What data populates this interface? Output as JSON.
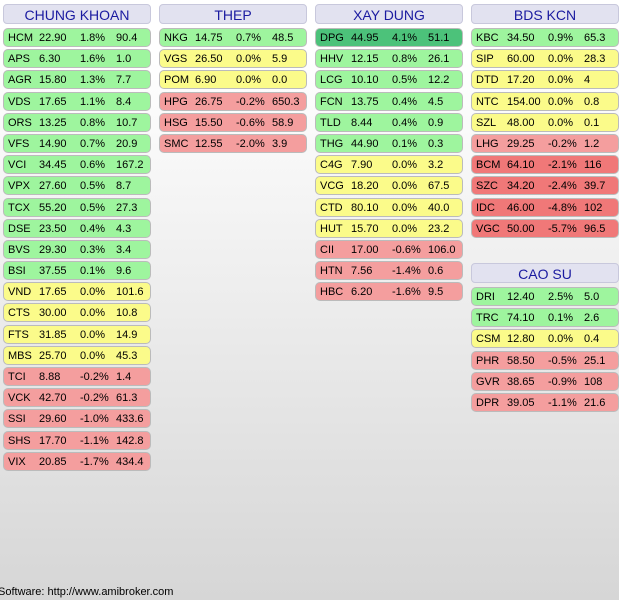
{
  "footer": "Software: http://www.amibroker.com",
  "columns": [
    {
      "title": "CHUNG KHOAN",
      "rows": [
        {
          "symbol": "HCM",
          "price": "22.90",
          "pct": "1.8%",
          "vol": "90.4",
          "trend": "up"
        },
        {
          "symbol": "APS",
          "price": "6.30",
          "pct": "1.6%",
          "vol": "1.0",
          "trend": "up"
        },
        {
          "symbol": "AGR",
          "price": "15.80",
          "pct": "1.3%",
          "vol": "7.7",
          "trend": "up"
        },
        {
          "symbol": "VDS",
          "price": "17.65",
          "pct": "1.1%",
          "vol": "8.4",
          "trend": "up"
        },
        {
          "symbol": "ORS",
          "price": "13.25",
          "pct": "0.8%",
          "vol": "10.7",
          "trend": "up"
        },
        {
          "symbol": "VFS",
          "price": "14.90",
          "pct": "0.7%",
          "vol": "20.9",
          "trend": "up"
        },
        {
          "symbol": "VCI",
          "price": "34.45",
          "pct": "0.6%",
          "vol": "167.2",
          "trend": "up"
        },
        {
          "symbol": "VPX",
          "price": "27.60",
          "pct": "0.5%",
          "vol": "8.7",
          "trend": "up"
        },
        {
          "symbol": "TCX",
          "price": "55.20",
          "pct": "0.5%",
          "vol": "27.3",
          "trend": "up"
        },
        {
          "symbol": "DSE",
          "price": "23.50",
          "pct": "0.4%",
          "vol": "4.3",
          "trend": "up"
        },
        {
          "symbol": "BVS",
          "price": "29.30",
          "pct": "0.3%",
          "vol": "3.4",
          "trend": "up"
        },
        {
          "symbol": "BSI",
          "price": "37.55",
          "pct": "0.1%",
          "vol": "9.6",
          "trend": "up"
        },
        {
          "symbol": "VND",
          "price": "17.65",
          "pct": "0.0%",
          "vol": "101.6",
          "trend": "ref"
        },
        {
          "symbol": "CTS",
          "price": "30.00",
          "pct": "0.0%",
          "vol": "10.8",
          "trend": "ref"
        },
        {
          "symbol": "FTS",
          "price": "31.85",
          "pct": "0.0%",
          "vol": "14.9",
          "trend": "ref"
        },
        {
          "symbol": "MBS",
          "price": "25.70",
          "pct": "0.0%",
          "vol": "45.3",
          "trend": "ref"
        },
        {
          "symbol": "TCI",
          "price": "8.88",
          "pct": "-0.2%",
          "vol": "1.4",
          "trend": "down"
        },
        {
          "symbol": "VCK",
          "price": "42.70",
          "pct": "-0.2%",
          "vol": "61.3",
          "trend": "down"
        },
        {
          "symbol": "SSI",
          "price": "29.60",
          "pct": "-1.0%",
          "vol": "433.6",
          "trend": "down"
        },
        {
          "symbol": "SHS",
          "price": "17.70",
          "pct": "-1.1%",
          "vol": "142.8",
          "trend": "down"
        },
        {
          "symbol": "VIX",
          "price": "20.85",
          "pct": "-1.7%",
          "vol": "434.4",
          "trend": "down"
        }
      ]
    },
    {
      "title": "THEP",
      "rows": [
        {
          "symbol": "NKG",
          "price": "14.75",
          "pct": "0.7%",
          "vol": "48.5",
          "trend": "up"
        },
        {
          "symbol": "VGS",
          "price": "26.50",
          "pct": "0.0%",
          "vol": "5.9",
          "trend": "ref"
        },
        {
          "symbol": "POM",
          "price": "6.90",
          "pct": "0.0%",
          "vol": "0.0",
          "trend": "ref"
        },
        {
          "symbol": "HPG",
          "price": "26.75",
          "pct": "-0.2%",
          "vol": "650.3",
          "trend": "down"
        },
        {
          "symbol": "HSG",
          "price": "15.50",
          "pct": "-0.6%",
          "vol": "58.9",
          "trend": "down"
        },
        {
          "symbol": "SMC",
          "price": "12.55",
          "pct": "-2.0%",
          "vol": "3.9",
          "trend": "down"
        }
      ]
    },
    {
      "title": "XAY DUNG",
      "rows": [
        {
          "symbol": "DPG",
          "price": "44.95",
          "pct": "4.1%",
          "vol": "51.1",
          "trend": "up-strong"
        },
        {
          "symbol": "HHV",
          "price": "12.15",
          "pct": "0.8%",
          "vol": "26.1",
          "trend": "up"
        },
        {
          "symbol": "LCG",
          "price": "10.10",
          "pct": "0.5%",
          "vol": "12.2",
          "trend": "up"
        },
        {
          "symbol": "FCN",
          "price": "13.75",
          "pct": "0.4%",
          "vol": "4.5",
          "trend": "up"
        },
        {
          "symbol": "TLD",
          "price": "8.44",
          "pct": "0.4%",
          "vol": "0.9",
          "trend": "up"
        },
        {
          "symbol": "THG",
          "price": "44.90",
          "pct": "0.1%",
          "vol": "0.3",
          "trend": "up"
        },
        {
          "symbol": "C4G",
          "price": "7.90",
          "pct": "0.0%",
          "vol": "3.2",
          "trend": "ref"
        },
        {
          "symbol": "VCG",
          "price": "18.20",
          "pct": "0.0%",
          "vol": "67.5",
          "trend": "ref"
        },
        {
          "symbol": "CTD",
          "price": "80.10",
          "pct": "0.0%",
          "vol": "40.0",
          "trend": "ref"
        },
        {
          "symbol": "HUT",
          "price": "15.70",
          "pct": "0.0%",
          "vol": "23.2",
          "trend": "ref"
        },
        {
          "symbol": "CII",
          "price": "17.00",
          "pct": "-0.6%",
          "vol": "106.0",
          "trend": "down"
        },
        {
          "symbol": "HTN",
          "price": "7.56",
          "pct": "-1.4%",
          "vol": "0.6",
          "trend": "down"
        },
        {
          "symbol": "HBC",
          "price": "6.20",
          "pct": "-1.6%",
          "vol": "9.5",
          "trend": "down"
        }
      ]
    },
    {
      "title": "BDS KCN",
      "rows": [
        {
          "symbol": "KBC",
          "price": "34.50",
          "pct": "0.9%",
          "vol": "65.3",
          "trend": "up"
        },
        {
          "symbol": "SIP",
          "price": "60.00",
          "pct": "0.0%",
          "vol": "28.3",
          "trend": "ref"
        },
        {
          "symbol": "DTD",
          "price": "17.20",
          "pct": "0.0%",
          "vol": "4",
          "trend": "ref"
        },
        {
          "symbol": "NTC",
          "price": "154.00",
          "pct": "0.0%",
          "vol": "0.8",
          "trend": "ref"
        },
        {
          "symbol": "SZL",
          "price": "48.00",
          "pct": "0.0%",
          "vol": "0.1",
          "trend": "ref"
        },
        {
          "symbol": "LHG",
          "price": "29.25",
          "pct": "-0.2%",
          "vol": "1.2",
          "trend": "down"
        },
        {
          "symbol": "BCM",
          "price": "64.10",
          "pct": "-2.1%",
          "vol": "116",
          "trend": "down-strong"
        },
        {
          "symbol": "SZC",
          "price": "34.20",
          "pct": "-2.4%",
          "vol": "39.7",
          "trend": "down-strong"
        },
        {
          "symbol": "IDC",
          "price": "46.00",
          "pct": "-4.8%",
          "vol": "102",
          "trend": "down-strong"
        },
        {
          "symbol": "VGC",
          "price": "50.00",
          "pct": "-5.7%",
          "vol": "96.5",
          "trend": "down-strong"
        }
      ]
    },
    {
      "title": "CAO SU",
      "rows": [
        {
          "symbol": "DRI",
          "price": "12.40",
          "pct": "2.5%",
          "vol": "5.0",
          "trend": "up"
        },
        {
          "symbol": "TRC",
          "price": "74.10",
          "pct": "0.1%",
          "vol": "2.6",
          "trend": "up"
        },
        {
          "symbol": "CSM",
          "price": "12.80",
          "pct": "0.0%",
          "vol": "0.4",
          "trend": "ref"
        },
        {
          "symbol": "PHR",
          "price": "58.50",
          "pct": "-0.5%",
          "vol": "25.1",
          "trend": "down"
        },
        {
          "symbol": "GVR",
          "price": "38.65",
          "pct": "-0.9%",
          "vol": "108",
          "trend": "down"
        },
        {
          "symbol": "DPR",
          "price": "39.05",
          "pct": "-1.1%",
          "vol": "21.6",
          "trend": "down"
        }
      ]
    }
  ]
}
